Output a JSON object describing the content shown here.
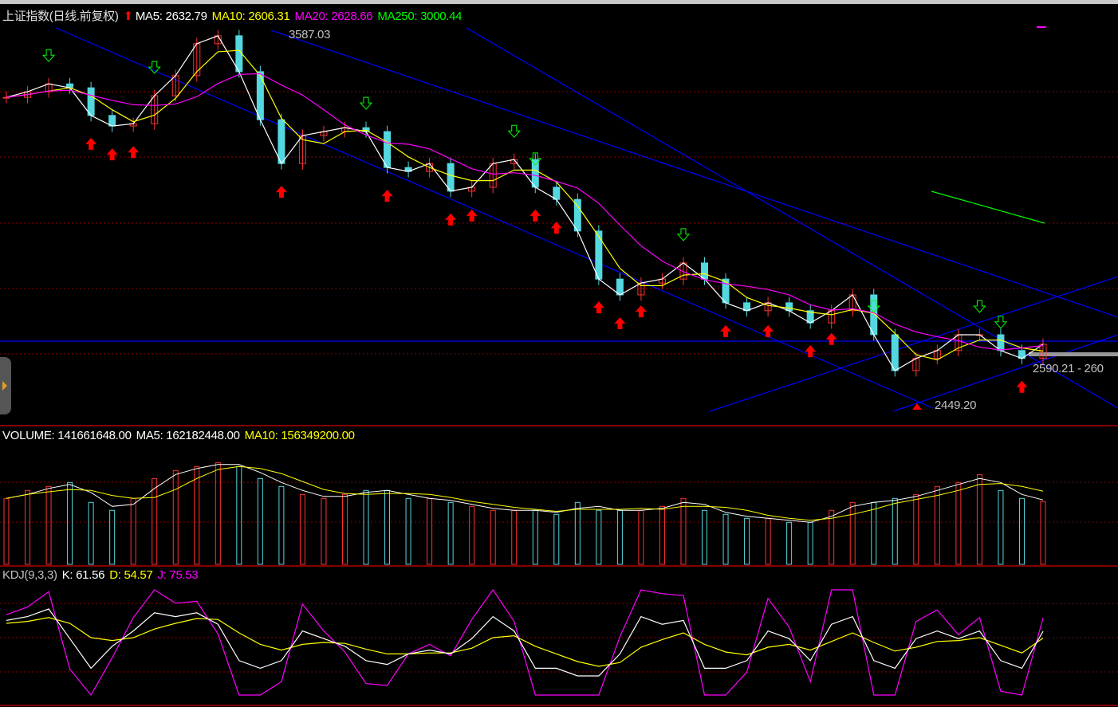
{
  "price_header": {
    "title": "上证指数(日线.前复权)",
    "arrow_icon": "red-up-arrow",
    "ma5": "MA5: 2632.79",
    "ma10": "MA10: 2606.31",
    "ma20": "MA20: 2628.66",
    "ma250": "MA250: 3000.44"
  },
  "volume_header": {
    "volume": "VOLUME: 141661648.00",
    "ma5": "MA5: 162182448.00",
    "ma10": "MA10: 156349200.00"
  },
  "kdj_header": {
    "name": "KDJ(9,3,3)",
    "k": "K: 61.56",
    "d": "D: 54.57",
    "j": "J: 75.53"
  },
  "annotations": {
    "high_label": "3587.03",
    "low_label": "2449.20",
    "range_label": "2590.21 - 260"
  },
  "colors": {
    "up": "#ff3232",
    "down": "#54d8e0",
    "ma5": "#ffffff",
    "ma10": "#ffff00",
    "ma20": "#ff00ff",
    "ma250": "#00ff00",
    "trendline": "#0000ff",
    "grid": "#8b0000"
  },
  "chart_data": [
    {
      "type": "line",
      "title": "上证指数(日线.前复权)",
      "series": [
        {
          "name": "close",
          "values": [
            3393,
            3410,
            3434,
            3422,
            3338,
            3306,
            3313,
            3398,
            3459,
            3556,
            3580,
            3471,
            3325,
            3192,
            3277,
            3289,
            3301,
            3289,
            3180,
            3168,
            3192,
            3108,
            3120,
            3192,
            3204,
            3120,
            3083,
            2987,
            2841,
            2793,
            2829,
            2841,
            2890,
            2841,
            2769,
            2745,
            2769,
            2745,
            2708,
            2745,
            2793,
            2672,
            2563,
            2600,
            2624,
            2672,
            2672,
            2624,
            2600,
            2643
          ]
        }
      ],
      "high": 3587.03,
      "low": 2449.2,
      "horizontal_line": 2652,
      "ylim": [
        2401,
        3669
      ],
      "buy_signals": [
        4,
        5,
        6,
        13,
        18,
        21,
        22,
        25,
        26,
        28,
        29,
        30,
        34,
        36,
        38,
        39,
        48
      ],
      "sell_signals": [
        2,
        7,
        17,
        24,
        25,
        32,
        41,
        46,
        47
      ]
    },
    {
      "type": "bar",
      "title": "VOLUME",
      "series": [
        {
          "name": "VOLUME (M)",
          "values": [
            149,
            167,
            176,
            185,
            140,
            122,
            149,
            194,
            212,
            221,
            230,
            221,
            194,
            176,
            158,
            149,
            158,
            167,
            167,
            149,
            149,
            140,
            131,
            122,
            122,
            122,
            113,
            140,
            122,
            122,
            122,
            131,
            149,
            122,
            113,
            104,
            104,
            95,
            95,
            122,
            140,
            140,
            149,
            158,
            176,
            185,
            203,
            167,
            149,
            142
          ]
        }
      ],
      "ylim": [
        0,
        310
      ]
    },
    {
      "type": "line",
      "title": "KDJ(9,3,3)",
      "series": [
        {
          "name": "K",
          "values": [
            73,
            77,
            85,
            54,
            23,
            46,
            62,
            81,
            77,
            81,
            69,
            31,
            23,
            31,
            62,
            54,
            46,
            31,
            27,
            38,
            42,
            38,
            54,
            77,
            62,
            23,
            23,
            15,
            15,
            38,
            77,
            69,
            73,
            23,
            23,
            31,
            62,
            54,
            31,
            69,
            77,
            31,
            23,
            54,
            62,
            54,
            62,
            31,
            23,
            61.56
          ]
        },
        {
          "name": "D",
          "values": [
            70,
            72,
            76,
            70,
            55,
            52,
            55,
            64,
            70,
            75,
            74,
            60,
            48,
            42,
            48,
            50,
            49,
            43,
            38,
            38,
            39,
            39,
            44,
            55,
            57,
            46,
            38,
            30,
            25,
            29,
            45,
            53,
            60,
            48,
            40,
            37,
            45,
            48,
            42,
            51,
            60,
            50,
            41,
            45,
            51,
            52,
            55,
            47,
            39,
            54.57
          ]
        }
      ],
      "ylim": [
        0,
        100
      ]
    }
  ]
}
